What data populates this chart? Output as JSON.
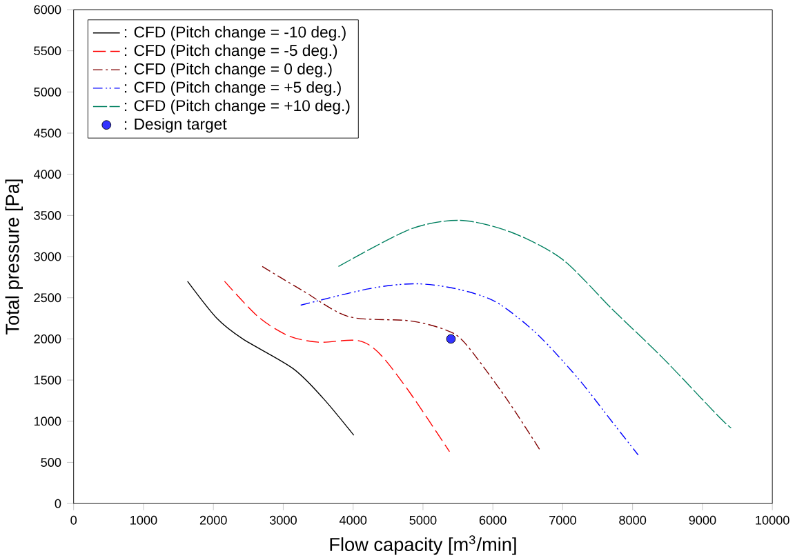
{
  "chart_data": {
    "type": "line",
    "xlabel": "Flow capacity [m$^{3}$/min]",
    "ylabel": "Total pressure [Pa]",
    "xlim": [
      0,
      10000
    ],
    "xticks": [
      0,
      1000,
      2000,
      3000,
      4000,
      5000,
      6000,
      7000,
      8000,
      9000,
      10000
    ],
    "ylim": [
      0,
      6000
    ],
    "yticks": [
      0,
      500,
      1000,
      1500,
      2000,
      2500,
      3000,
      3500,
      4000,
      4500,
      5000,
      5500,
      6000
    ],
    "grid": false,
    "legend": "top left",
    "marker": "none",
    "series": [
      {
        "name": ": CFD (Pitch change = -10 deg.)",
        "color": "#000000",
        "line_style": "solid",
        "x": [
          1630,
          2050,
          2420,
          3140,
          3570,
          4010
        ],
        "values": [
          2700,
          2250,
          2000,
          1640,
          1280,
          830
        ]
      },
      {
        "name": ": CFD (Pitch change = -5 deg.)",
        "color": "#ff0000",
        "line_style": "dashed",
        "x": [
          2160,
          2640,
          3070,
          3500,
          4070,
          4380,
          4810,
          5380
        ],
        "values": [
          2700,
          2270,
          2040,
          1960,
          1980,
          1820,
          1350,
          630
        ]
      },
      {
        "name": ": CFD (Pitch change = 0 deg.)",
        "color": "#800000",
        "line_style": "dashed",
        "x": [
          2700,
          3290,
          3940,
          4810,
          5320,
          5600,
          6190,
          6690
        ],
        "values": [
          2880,
          2580,
          2270,
          2220,
          2110,
          1950,
          1280,
          630
        ]
      },
      {
        "name": ": CFD (Pitch change = +5 deg.)",
        "color": "#0000ff",
        "line_style": "dashed",
        "x": [
          3250,
          4230,
          4880,
          5470,
          6040,
          6620,
          7210,
          7710,
          8080
        ],
        "values": [
          2410,
          2610,
          2670,
          2610,
          2450,
          2070,
          1530,
          990,
          590
        ]
      },
      {
        "name": ": CFD (Pitch change = +10 deg.)",
        "color": "#008060",
        "line_style": "dashed",
        "x": [
          3790,
          4810,
          5530,
          6250,
          6990,
          7710,
          8430,
          9240,
          9410
        ],
        "values": [
          2880,
          3330,
          3440,
          3300,
          2970,
          2360,
          1770,
          1050,
          920
        ]
      },
      {
        "name": ": Design target",
        "type": "scatter",
        "marker": "circle",
        "color": "#3333ff",
        "x": [
          5400
        ],
        "values": [
          2000
        ]
      }
    ]
  }
}
